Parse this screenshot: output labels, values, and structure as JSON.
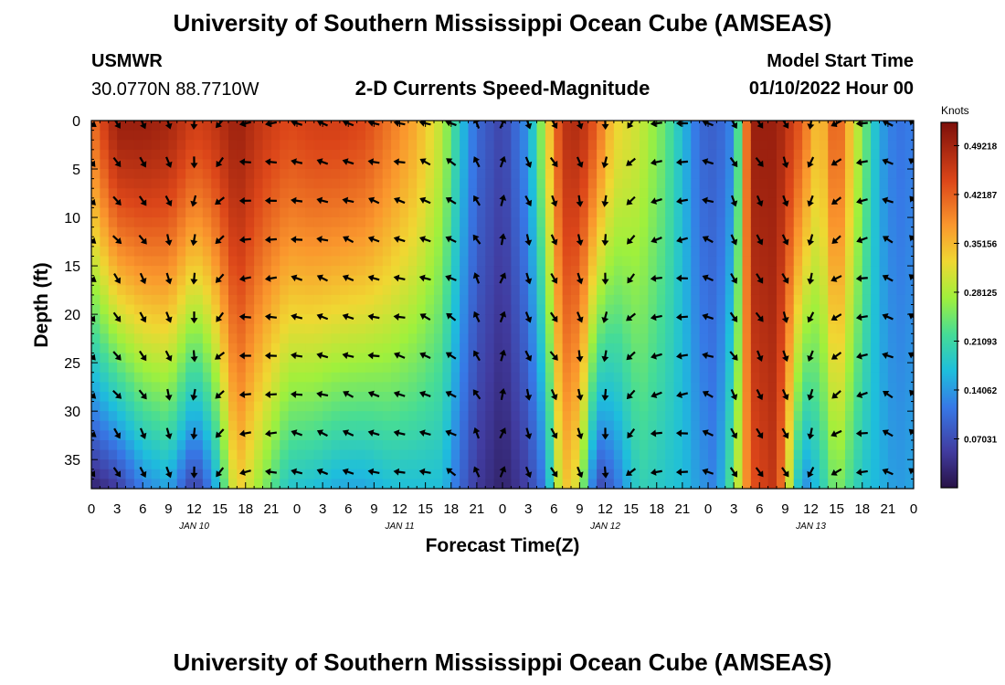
{
  "header": {
    "title": "University of Southern Mississippi Ocean Cube (AMSEAS)",
    "station": "USMWR",
    "coords": "30.0770N  88.7710W",
    "subtitle": "2-D Currents Speed-Magnitude",
    "start_label": "Model Start Time",
    "start_value": "01/10/2022 Hour 00"
  },
  "footer": {
    "title": "University of Southern Mississippi Ocean Cube (AMSEAS)"
  },
  "chart_data": {
    "type": "heatmap",
    "title": "2-D Currents Speed-Magnitude",
    "xlabel": "Forecast Time(Z)",
    "ylabel": "Depth (ft)",
    "x_unit": "hours since 01/10/2022 00Z",
    "xlim": [
      0,
      96
    ],
    "ylim": [
      0,
      38
    ],
    "x_ticks": [
      0,
      3,
      6,
      9,
      12,
      15,
      18,
      21,
      24,
      27,
      30,
      33,
      36,
      39,
      42,
      45,
      48,
      51,
      54,
      57,
      60,
      63,
      66,
      69,
      72,
      75,
      78,
      81,
      84,
      87,
      90,
      93,
      96
    ],
    "x_tick_labels": [
      "0",
      "3",
      "6",
      "9",
      "12",
      "15",
      "18",
      "21",
      "0",
      "3",
      "6",
      "9",
      "12",
      "15",
      "18",
      "21",
      "0",
      "3",
      "6",
      "9",
      "12",
      "15",
      "18",
      "21",
      "0",
      "3",
      "6",
      "9",
      "12",
      "15",
      "18",
      "21",
      "0"
    ],
    "y_ticks": [
      0,
      5,
      10,
      15,
      20,
      25,
      30,
      35
    ],
    "y_tick_labels": [
      "0",
      "5",
      "10",
      "15",
      "20",
      "25",
      "30",
      "35"
    ],
    "date_labels": [
      {
        "hour": 12,
        "text": "JAN 10"
      },
      {
        "hour": 36,
        "text": "JAN 11"
      },
      {
        "hour": 60,
        "text": "JAN 12"
      },
      {
        "hour": 84,
        "text": "JAN 13"
      }
    ],
    "colorbar": {
      "unit": "Knots",
      "min": 0,
      "max": 0.5256,
      "ticks": [
        0.07031,
        0.14062,
        0.21093,
        0.28125,
        0.35156,
        0.42187,
        0.49218
      ],
      "tick_labels": [
        "0.07031",
        "0.14062",
        "0.21093",
        "0.28125",
        "0.35156",
        "0.42187",
        "0.49218"
      ]
    },
    "grid": false,
    "columns": [
      {
        "hour": 0,
        "top": 0.4,
        "bottom": 0.02
      },
      {
        "hour": 3,
        "top": 0.5,
        "bottom": 0.05
      },
      {
        "hour": 6,
        "top": 0.5,
        "bottom": 0.12
      },
      {
        "hour": 9,
        "top": 0.49,
        "bottom": 0.15
      },
      {
        "hour": 12,
        "top": 0.45,
        "bottom": 0.05
      },
      {
        "hour": 14,
        "top": 0.46,
        "bottom": 0.12
      },
      {
        "hour": 17,
        "top": 0.5,
        "bottom": 0.34
      },
      {
        "hour": 20,
        "top": 0.46,
        "bottom": 0.26
      },
      {
        "hour": 23,
        "top": 0.44,
        "bottom": 0.18
      },
      {
        "hour": 26,
        "top": 0.45,
        "bottom": 0.17
      },
      {
        "hour": 29,
        "top": 0.45,
        "bottom": 0.15
      },
      {
        "hour": 32,
        "top": 0.44,
        "bottom": 0.15
      },
      {
        "hour": 35,
        "top": 0.4,
        "bottom": 0.17
      },
      {
        "hour": 38,
        "top": 0.36,
        "bottom": 0.17
      },
      {
        "hour": 41,
        "top": 0.29,
        "bottom": 0.17
      },
      {
        "hour": 43,
        "top": 0.18,
        "bottom": 0.1
      },
      {
        "hour": 45,
        "top": 0.1,
        "bottom": 0.05
      },
      {
        "hour": 48,
        "top": 0.06,
        "bottom": 0.02
      },
      {
        "hour": 51,
        "top": 0.14,
        "bottom": 0.06
      },
      {
        "hour": 53,
        "top": 0.3,
        "bottom": 0.12
      },
      {
        "hour": 55,
        "top": 0.47,
        "bottom": 0.35
      },
      {
        "hour": 57,
        "top": 0.48,
        "bottom": 0.3
      },
      {
        "hour": 59,
        "top": 0.42,
        "bottom": 0.06
      },
      {
        "hour": 61,
        "top": 0.33,
        "bottom": 0.1
      },
      {
        "hour": 64,
        "top": 0.3,
        "bottom": 0.2
      },
      {
        "hour": 67,
        "top": 0.24,
        "bottom": 0.18
      },
      {
        "hour": 69,
        "top": 0.17,
        "bottom": 0.17
      },
      {
        "hour": 71,
        "top": 0.1,
        "bottom": 0.14
      },
      {
        "hour": 73,
        "top": 0.09,
        "bottom": 0.12
      },
      {
        "hour": 75,
        "top": 0.13,
        "bottom": 0.25
      },
      {
        "hour": 77,
        "top": 0.5,
        "bottom": 0.43
      },
      {
        "hour": 80,
        "top": 0.5,
        "bottom": 0.47
      },
      {
        "hour": 83,
        "top": 0.42,
        "bottom": 0.12
      },
      {
        "hour": 85,
        "top": 0.33,
        "bottom": 0.18
      },
      {
        "hour": 87,
        "top": 0.44,
        "bottom": 0.26
      },
      {
        "hour": 90,
        "top": 0.26,
        "bottom": 0.18
      },
      {
        "hour": 92,
        "top": 0.15,
        "bottom": 0.16
      },
      {
        "hour": 94,
        "top": 0.11,
        "bottom": 0.14
      },
      {
        "hour": 96,
        "top": 0.12,
        "bottom": 0.15
      }
    ],
    "vector_rows_ft": [
      0,
      4,
      8,
      12,
      16,
      20,
      24,
      28,
      32,
      36
    ],
    "vectors": [
      {
        "hour": 0,
        "dir_deg": 135
      },
      {
        "hour": 3,
        "dir_deg": 140
      },
      {
        "hour": 6,
        "dir_deg": 150
      },
      {
        "hour": 9,
        "dir_deg": 160
      },
      {
        "hour": 12,
        "dir_deg": 185
      },
      {
        "hour": 15,
        "dir_deg": 225
      },
      {
        "hour": 18,
        "dir_deg": 265
      },
      {
        "hour": 21,
        "dir_deg": 270
      },
      {
        "hour": 24,
        "dir_deg": 280
      },
      {
        "hour": 27,
        "dir_deg": 290
      },
      {
        "hour": 30,
        "dir_deg": 290
      },
      {
        "hour": 33,
        "dir_deg": 285
      },
      {
        "hour": 36,
        "dir_deg": 285
      },
      {
        "hour": 39,
        "dir_deg": 290
      },
      {
        "hour": 42,
        "dir_deg": 300
      },
      {
        "hour": 45,
        "dir_deg": 330
      },
      {
        "hour": 48,
        "dir_deg": 20
      },
      {
        "hour": 51,
        "dir_deg": 160
      },
      {
        "hour": 54,
        "dir_deg": 150
      },
      {
        "hour": 57,
        "dir_deg": 165
      },
      {
        "hour": 60,
        "dir_deg": 185
      },
      {
        "hour": 63,
        "dir_deg": 225
      },
      {
        "hour": 66,
        "dir_deg": 255
      },
      {
        "hour": 69,
        "dir_deg": 265
      },
      {
        "hour": 72,
        "dir_deg": 290
      },
      {
        "hour": 75,
        "dir_deg": 150
      },
      {
        "hour": 78,
        "dir_deg": 150
      },
      {
        "hour": 81,
        "dir_deg": 155
      },
      {
        "hour": 84,
        "dir_deg": 200
      },
      {
        "hour": 87,
        "dir_deg": 235
      },
      {
        "hour": 90,
        "dir_deg": 260
      },
      {
        "hour": 93,
        "dir_deg": 295
      },
      {
        "hour": 96,
        "dir_deg": 310
      }
    ]
  }
}
